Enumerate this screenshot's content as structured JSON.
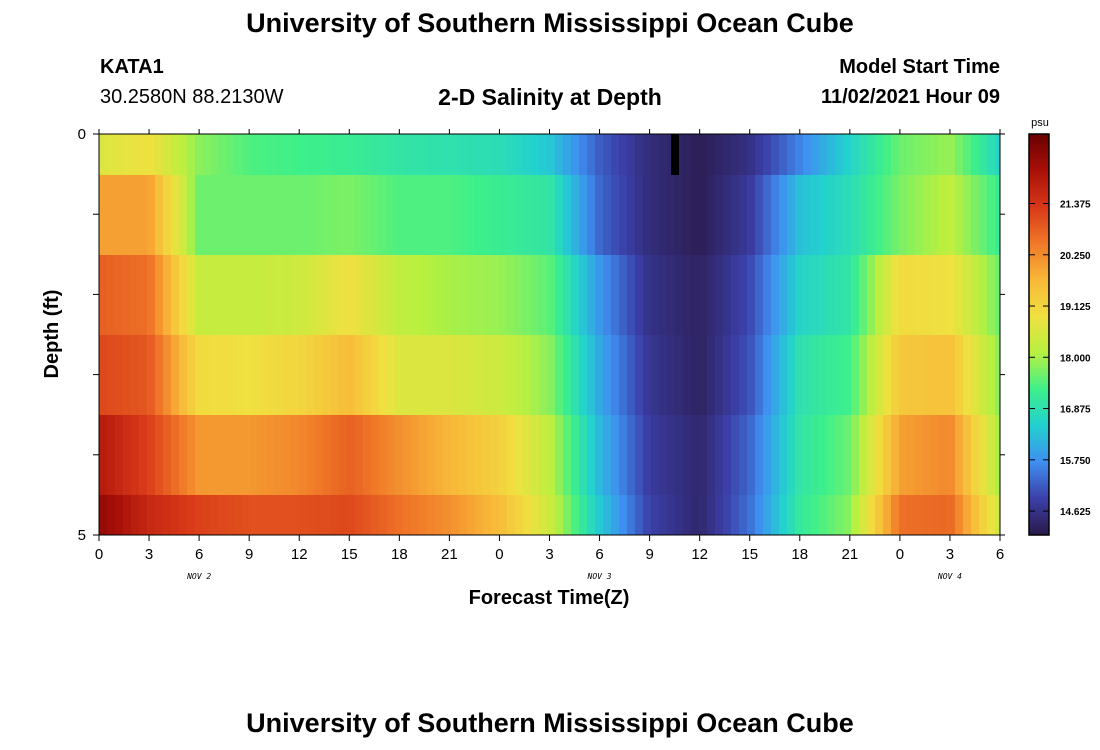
{
  "header": {
    "title": "University of Southern Mississippi Ocean Cube",
    "station_id": "KATA1",
    "coordinates": "30.2580N  88.2130W",
    "subtitle": "2-D Salinity at Depth",
    "model_start_label": "Model Start Time",
    "model_start_value": "11/02/2021 Hour 09"
  },
  "footer": {
    "title": "University of Southern Mississippi Ocean Cube"
  },
  "chart_data": {
    "type": "heatmap",
    "title": "2-D Salinity at Depth",
    "xlabel": "Forecast Time(Z)",
    "ylabel": "Depth (ft)",
    "x_tick_labels": [
      "0",
      "3",
      "6",
      "9",
      "12",
      "15",
      "18",
      "21",
      "0",
      "3",
      "6",
      "9",
      "12",
      "15",
      "18",
      "21",
      "0",
      "3",
      "6"
    ],
    "x_date_labels": [
      {
        "label": "NOV 2",
        "tick_index": 2
      },
      {
        "label": "NOV 3",
        "tick_index": 10
      },
      {
        "label": "NOV 4",
        "tick_index": 17
      }
    ],
    "y_tick_labels": [
      "0",
      "5"
    ],
    "ylim": [
      0,
      5
    ],
    "colorbar": {
      "unit": "psu",
      "tick_labels": [
        "21.375",
        "20.250",
        "19.125",
        "18.000",
        "16.875",
        "15.750",
        "14.625"
      ],
      "range": [
        14.1,
        22.9
      ],
      "colors": [
        "#2a1a4a",
        "#3b3fa8",
        "#3f8ff0",
        "#22d0d0",
        "#3ef08a",
        "#b8f040",
        "#f0e040",
        "#f8b838",
        "#f07828",
        "#d83818",
        "#a81008",
        "#6a0000"
      ]
    },
    "x_forecast_hours": [
      0,
      3,
      6,
      9,
      12,
      15,
      18,
      21,
      24,
      27,
      30,
      33,
      36,
      39,
      42,
      45,
      48,
      51,
      54
    ],
    "depth_rows": [
      {
        "depth": "0-0.5",
        "values": [
          18.6,
          18.9,
          17.8,
          17.4,
          17.3,
          17.2,
          17.0,
          16.9,
          16.8,
          16.4,
          15.2,
          14.5,
          14.2,
          14.6,
          15.6,
          16.6,
          17.6,
          17.9,
          16.6
        ]
      },
      {
        "depth": "0.5-1.5",
        "values": [
          20.0,
          20.0,
          17.6,
          17.6,
          17.6,
          17.7,
          17.4,
          17.4,
          17.2,
          17.0,
          15.3,
          14.5,
          14.2,
          14.8,
          16.3,
          16.8,
          17.7,
          18.2,
          17.2
        ]
      },
      {
        "depth": "1.5-2.5",
        "values": [
          20.8,
          20.6,
          18.3,
          18.3,
          18.4,
          18.9,
          18.2,
          18.0,
          17.9,
          17.5,
          15.8,
          14.6,
          14.3,
          15.0,
          16.6,
          17.0,
          19.0,
          18.9,
          17.6
        ]
      },
      {
        "depth": "2.5-3.5",
        "values": [
          21.1,
          20.9,
          19.0,
          18.9,
          19.1,
          19.6,
          18.6,
          18.6,
          18.4,
          17.8,
          16.0,
          14.7,
          14.3,
          15.1,
          16.9,
          17.3,
          19.4,
          19.5,
          17.8
        ]
      },
      {
        "depth": "3.5-4.5",
        "values": [
          21.9,
          21.2,
          20.1,
          20.1,
          20.3,
          20.8,
          20.2,
          19.7,
          19.2,
          18.2,
          16.2,
          14.8,
          14.4,
          15.3,
          17.0,
          17.6,
          20.0,
          20.3,
          18.0
        ]
      },
      {
        "depth": "4.5-5",
        "values": [
          22.4,
          21.6,
          21.2,
          21.0,
          21.0,
          21.1,
          20.6,
          20.2,
          19.6,
          18.4,
          16.4,
          14.9,
          14.4,
          15.4,
          17.1,
          17.8,
          20.6,
          20.7,
          18.4
        ]
      }
    ]
  }
}
